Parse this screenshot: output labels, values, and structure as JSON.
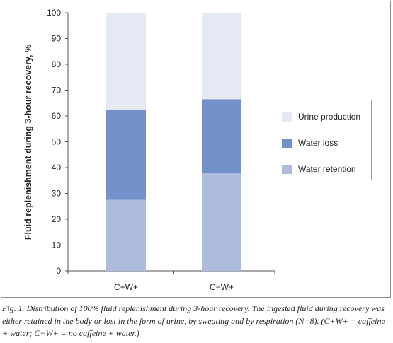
{
  "chart_data": {
    "type": "bar",
    "stacked": true,
    "categories": [
      "C+W+",
      "C−W+"
    ],
    "series": [
      {
        "name": "Water retention",
        "values": [
          27.5,
          38
        ],
        "color": "#adbcdd"
      },
      {
        "name": "Water loss",
        "values": [
          35,
          28.5
        ],
        "color": "#7391c8"
      },
      {
        "name": "Urine production",
        "values": [
          37.5,
          33.5
        ],
        "color": "#e4e9f4"
      }
    ],
    "ylabel": "Fluid replenishment during 3-hour recovery, %",
    "xlabel": "",
    "ylim": [
      0,
      100
    ],
    "yticks": [
      0,
      10,
      20,
      30,
      40,
      50,
      60,
      70,
      80,
      90,
      100
    ],
    "grid": false,
    "legend_position": "right",
    "legend_order": [
      "Urine production",
      "Water loss",
      "Water retention"
    ]
  },
  "caption": "Fig. 1. Distribution of 100% fluid replenishment during 3-hour recovery. The ingested fluid during recovery was either retained in the body or lost in the form of urine, by sweating and by respiration (N=8). (C+W+ = caffeine + water; C−W+ = no caffeine + water.)"
}
